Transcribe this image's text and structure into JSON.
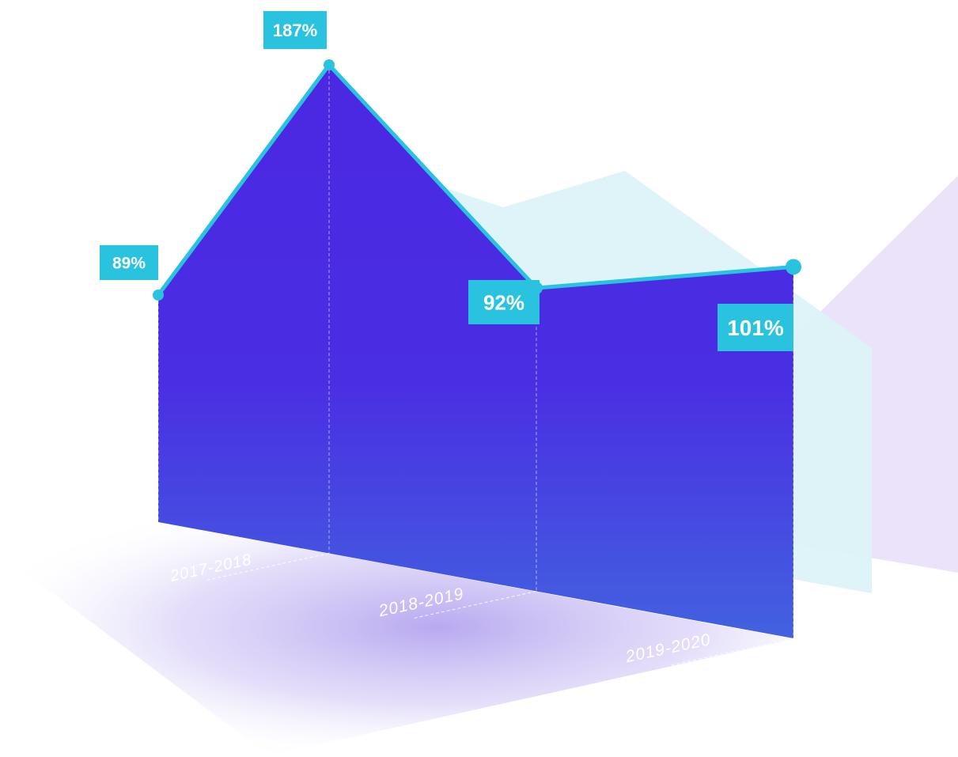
{
  "chart_data": {
    "type": "area",
    "title": "",
    "xlabel": "",
    "ylabel": "",
    "x": [
      "",
      "2017-2018",
      "2018-2019",
      "2019-2020"
    ],
    "series": [
      {
        "values": [
          89,
          187,
          92,
          101
        ],
        "value_labels": [
          "89%",
          "187%",
          "92%",
          "101%"
        ],
        "color": "#4b2ae0",
        "line_color": "#29c3e0"
      }
    ],
    "ylim": [
      0,
      200
    ],
    "grid": false,
    "legend": "none"
  },
  "colors": {
    "label_background": "#29c3e0",
    "area_top": "#4b2ae0",
    "area_bottom": "#4360e0",
    "back_panel_cyan": "#dff4f9",
    "back_panel_lavender": "#ebe3fa",
    "floor_shadow": "#b8a9ef"
  }
}
